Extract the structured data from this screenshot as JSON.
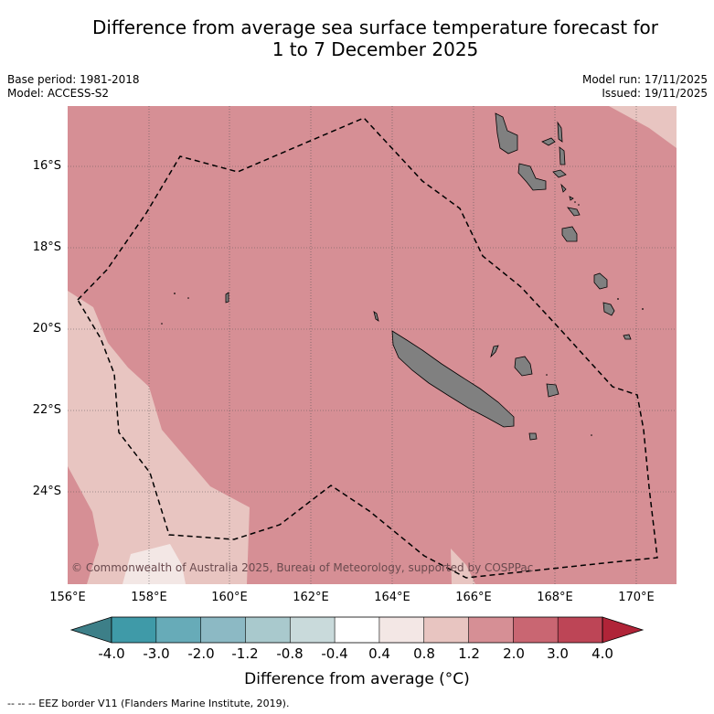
{
  "title": {
    "line1": "Difference from average sea surface temperature forecast for",
    "line2": "1 to 7 December 2025"
  },
  "meta": {
    "base_period": "Base period: 1981-2018",
    "model": "Model: ACCESS-S2",
    "model_run": "Model run: 17/11/2025",
    "issued": "Issued: 19/11/2025"
  },
  "map": {
    "lat_labels": [
      "16°S",
      "18°S",
      "20°S",
      "22°S",
      "24°S"
    ],
    "lon_labels": [
      "156°E",
      "158°E",
      "160°E",
      "162°E",
      "164°E",
      "166°E",
      "168°E",
      "170°E"
    ],
    "copyright": "© Commonwealth of Australia 2025, Bureau of Meteorology, supported by COSPPac",
    "land_color": "#808080"
  },
  "colorbar": {
    "title": "Difference from average (°C)",
    "labels": [
      "-4.0",
      "-3.0",
      "-2.0",
      "-1.2",
      "-0.8",
      "-0.4",
      "0.4",
      "0.8",
      "1.2",
      "2.0",
      "3.0",
      "4.0"
    ],
    "colors": [
      "#3f9aa8",
      "#67abb8",
      "#8cb9c4",
      "#a9c9cd",
      "#c9dadb",
      "#ffffff",
      "#f3e7e5",
      "#e8c5c1",
      "#d68f95",
      "#c96672",
      "#bd4556"
    ],
    "extend_low_color": "#3d7f88",
    "extend_high_color": "#b02438"
  },
  "footer": {
    "legend": "-- -- -- EEZ border V11 (Flanders Marine Institute, 2019)."
  }
}
